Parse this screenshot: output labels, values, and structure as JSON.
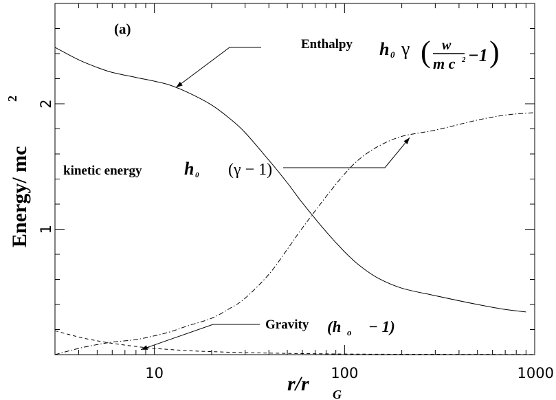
{
  "chart_data": {
    "type": "line",
    "title": "",
    "panel_label": "(a)",
    "xlabel": {
      "main": "r/r",
      "sub": "G"
    },
    "ylabel": {
      "main": "Energy/ mc",
      "sup": "2"
    },
    "xscale": "log",
    "xlim": [
      3,
      1000
    ],
    "ylim": [
      0,
      2.8
    ],
    "grid": false,
    "legend": "none",
    "x_ticks": [
      {
        "value": 10,
        "label": "10"
      },
      {
        "value": 100,
        "label": "100"
      },
      {
        "value": 1000,
        "label": "1000"
      }
    ],
    "y_ticks": [
      {
        "value": 1,
        "label": "1"
      },
      {
        "value": 2,
        "label": "2"
      }
    ],
    "series": [
      {
        "style": "solid",
        "x": [
          3,
          4,
          5,
          6,
          8,
          10,
          12,
          15,
          20,
          25,
          30,
          40,
          50,
          60,
          80,
          100,
          120,
          150,
          200,
          300,
          500,
          700,
          900
        ],
        "y": [
          2.45,
          2.35,
          2.29,
          2.25,
          2.21,
          2.18,
          2.15,
          2.09,
          1.99,
          1.88,
          1.77,
          1.55,
          1.37,
          1.21,
          0.98,
          0.82,
          0.71,
          0.61,
          0.53,
          0.47,
          0.4,
          0.36,
          0.34
        ]
      },
      {
        "style": "dash-dot",
        "x": [
          3,
          4,
          5,
          6,
          8,
          10,
          12,
          15,
          20,
          25,
          30,
          40,
          50,
          60,
          80,
          100,
          120,
          150,
          200,
          300,
          500,
          700,
          1000
        ],
        "y": [
          0.0,
          0.05,
          0.08,
          0.1,
          0.12,
          0.15,
          0.18,
          0.23,
          0.29,
          0.37,
          0.45,
          0.64,
          0.84,
          1.01,
          1.26,
          1.44,
          1.56,
          1.66,
          1.74,
          1.79,
          1.87,
          1.91,
          1.93
        ]
      },
      {
        "style": "dashed",
        "x": [
          3,
          4,
          5,
          6,
          8,
          10,
          15,
          20,
          30,
          50,
          100,
          200,
          500,
          1000
        ],
        "y": [
          0.19,
          0.14,
          0.11,
          0.09,
          0.065,
          0.05,
          0.032,
          0.024,
          0.016,
          0.01,
          0.005,
          0.003,
          0.002,
          0.001
        ]
      }
    ],
    "annotations": {
      "enthalpy": {
        "label": "Enthalpy",
        "h": "h",
        "h_sub": "0",
        "gamma": "γ",
        "frac_num": "w",
        "frac_den": "m c",
        "frac_den_sup": "2",
        "paren_open": "(",
        "paren_close": ")",
        "minus_one": "−1",
        "arrow_to": {
          "x": 13,
          "y": 2.13
        }
      },
      "kinetic": {
        "label": "kinetic energy",
        "h": "h",
        "h_sub": "0",
        "expr": "(γ − 1)",
        "arrow_to": {
          "x": 220,
          "y": 1.73
        }
      },
      "gravity": {
        "label": "Gravity",
        "expr_open": "(h",
        "expr_sub": "o",
        "expr_close": "− 1)",
        "arrow_to": {
          "x": 8.5,
          "y": 0.04
        }
      }
    }
  }
}
